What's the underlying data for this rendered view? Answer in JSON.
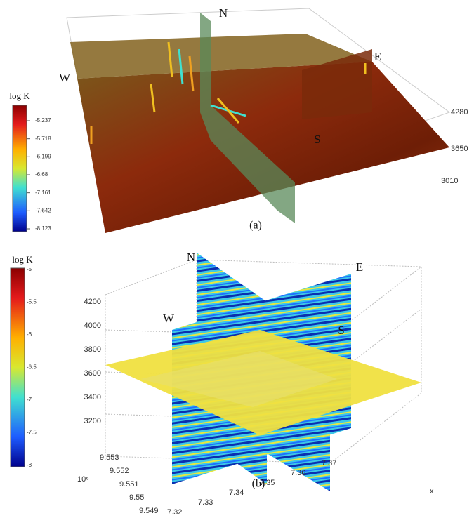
{
  "panel_a": {
    "colorbar_title": "log K",
    "colorbar_ticks": [
      "-5.237",
      "-5.718",
      "-6.199",
      "-6.68",
      "-7.161",
      "-7.642",
      "-8.123"
    ],
    "directions": {
      "north": "N",
      "east": "E",
      "west": "W",
      "south": "S"
    },
    "z_ticks": [
      "4280",
      "3650",
      "3010"
    ],
    "caption": "(a)"
  },
  "panel_b": {
    "colorbar_title": "log K",
    "colorbar_ticks": [
      "-5",
      "-5.5",
      "-6",
      "-6.5",
      "-7",
      "-7.5",
      "-8"
    ],
    "directions": {
      "north": "N",
      "east": "E",
      "west": "W",
      "south": "S"
    },
    "z_ticks": [
      "4200",
      "4000",
      "3800",
      "3600",
      "3400",
      "3200"
    ],
    "y_ticks": [
      "9.553",
      "9.552",
      "9.551",
      "9.55",
      "9.549"
    ],
    "y_multiplier": "10⁶",
    "x_ticks": [
      "7.32",
      "7.33",
      "7.34",
      "7.35",
      "7.36",
      "7.37"
    ],
    "x_label": "x",
    "caption": "(b)"
  }
}
